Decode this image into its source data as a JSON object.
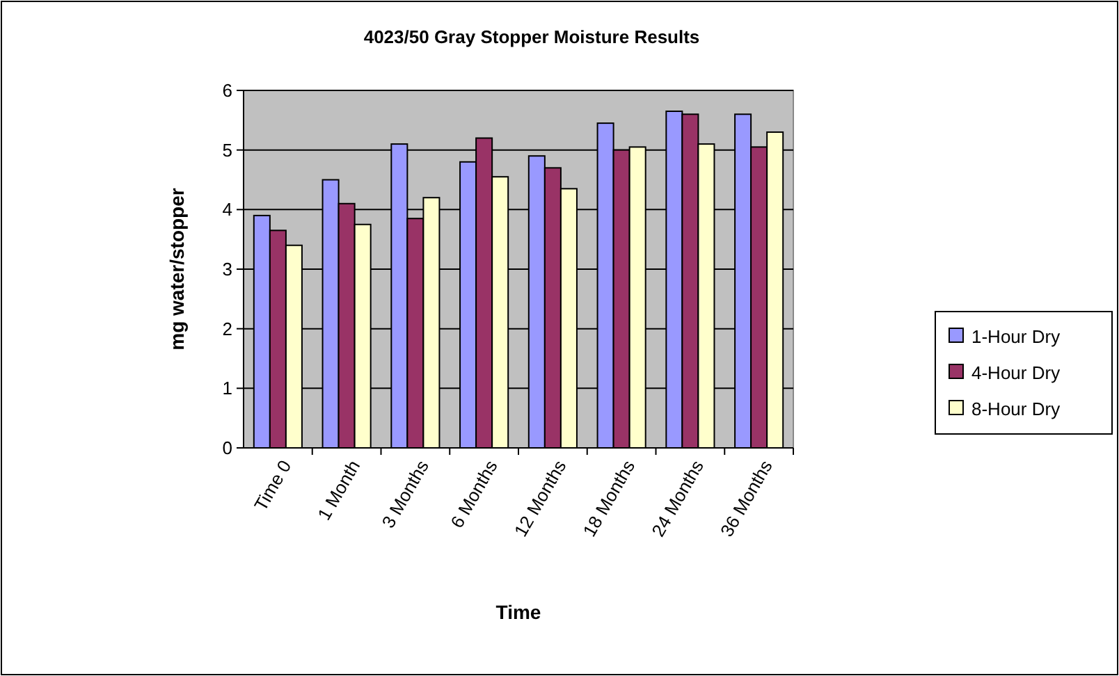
{
  "chart_data": {
    "type": "bar",
    "title": "4023/50 Gray Stopper Moisture Results",
    "xlabel": "Time",
    "ylabel": "mg water/stopper",
    "categories": [
      "Time 0",
      "1 Month",
      "3 Months",
      "6 Months",
      "12 Months",
      "18 Months",
      "24 Months",
      "36 Months"
    ],
    "series": [
      {
        "name": "1-Hour Dry",
        "color": "#9999ff",
        "values": [
          3.9,
          4.5,
          5.1,
          4.8,
          4.9,
          5.45,
          5.65,
          5.6
        ]
      },
      {
        "name": "4-Hour Dry",
        "color": "#993366",
        "values": [
          3.65,
          4.1,
          3.85,
          5.2,
          4.7,
          5.0,
          5.6,
          5.05
        ]
      },
      {
        "name": "8-Hour Dry",
        "color": "#ffffcc",
        "values": [
          3.4,
          3.75,
          4.2,
          4.55,
          4.35,
          5.05,
          5.1,
          5.3
        ]
      }
    ],
    "ylim": [
      0,
      6
    ],
    "yticks": [
      0,
      1,
      2,
      3,
      4,
      5,
      6
    ],
    "grid": "y",
    "legend": "right"
  }
}
